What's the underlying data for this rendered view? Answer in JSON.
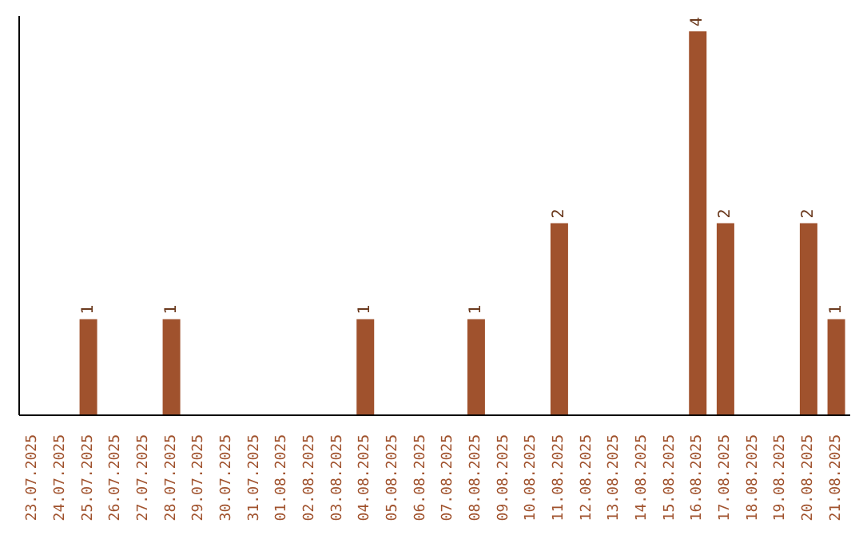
{
  "chart_data": {
    "type": "bar",
    "categories": [
      "23.07.2025",
      "24.07.2025",
      "25.07.2025",
      "26.07.2025",
      "27.07.2025",
      "28.07.2025",
      "29.07.2025",
      "30.07.2025",
      "31.07.2025",
      "01.08.2025",
      "02.08.2025",
      "03.08.2025",
      "04.08.2025",
      "05.08.2025",
      "06.08.2025",
      "07.08.2025",
      "08.08.2025",
      "09.08.2025",
      "10.08.2025",
      "11.08.2025",
      "12.08.2025",
      "13.08.2025",
      "14.08.2025",
      "15.08.2025",
      "16.08.2025",
      "17.08.2025",
      "18.08.2025",
      "19.08.2025",
      "20.08.2025",
      "21.08.2025"
    ],
    "values": [
      0,
      0,
      1,
      0,
      0,
      1,
      0,
      0,
      0,
      0,
      0,
      0,
      1,
      0,
      0,
      0,
      1,
      0,
      0,
      2,
      0,
      0,
      0,
      0,
      4,
      2,
      0,
      0,
      2,
      1
    ],
    "value_labels": [
      null,
      null,
      "1",
      null,
      null,
      "1",
      null,
      null,
      null,
      null,
      null,
      null,
      "1",
      null,
      null,
      null,
      "1",
      null,
      null,
      "2",
      null,
      null,
      null,
      null,
      "4",
      "2",
      null,
      null,
      "2",
      "1"
    ],
    "color": "#a0522d",
    "tick_labels": "x",
    "grid": false
  }
}
